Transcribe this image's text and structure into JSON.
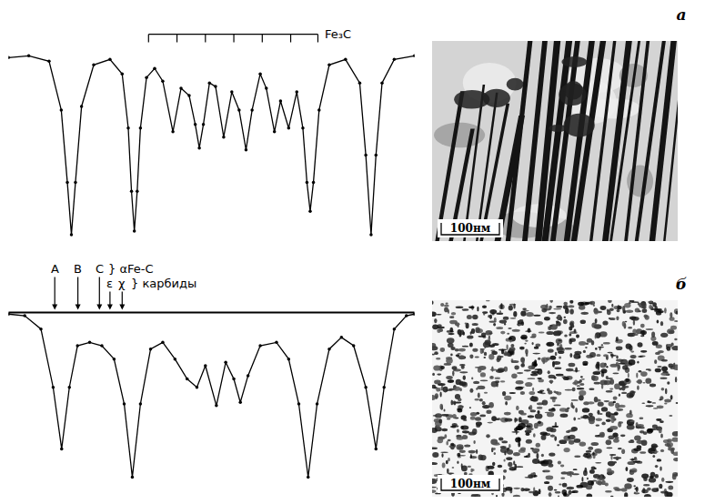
{
  "chart_data": [
    {
      "type": "line",
      "color": "#000000",
      "marker": "circle",
      "grid": false,
      "tick_labels": false,
      "x": [
        0,
        5,
        10,
        13,
        14.5,
        15.5,
        16.5,
        18,
        21,
        25,
        28,
        29.5,
        30.3,
        31,
        31.7,
        32.5,
        34,
        36,
        38,
        40.5,
        42.5,
        44.5,
        46,
        47,
        48,
        49.5,
        51,
        53,
        55,
        56.8,
        58.5,
        60,
        62,
        63.5,
        65.5,
        67,
        69,
        71,
        72.5,
        73.5,
        74.3,
        75.1,
        76.5,
        79,
        83,
        86.5,
        88,
        89.3,
        90.5,
        92,
        95,
        100
      ],
      "values": [
        0.99,
        1.0,
        0.97,
        0.7,
        0.3,
        0.01,
        0.3,
        0.72,
        0.95,
        0.98,
        0.9,
        0.6,
        0.25,
        0.03,
        0.25,
        0.6,
        0.88,
        0.93,
        0.86,
        0.58,
        0.82,
        0.78,
        0.62,
        0.49,
        0.62,
        0.85,
        0.83,
        0.55,
        0.8,
        0.7,
        0.48,
        0.7,
        0.9,
        0.82,
        0.58,
        0.75,
        0.6,
        0.8,
        0.6,
        0.3,
        0.14,
        0.3,
        0.7,
        0.95,
        0.98,
        0.85,
        0.45,
        0.01,
        0.45,
        0.85,
        0.98,
        1.0
      ],
      "xlim": [
        0,
        100
      ],
      "ylim": [
        -0.03,
        1.03
      ],
      "xticks": [],
      "yticks": [],
      "bracket": {
        "text": "Fe₃C",
        "x": [
          34.5,
          41.5,
          48.5,
          55.5,
          62.5,
          69.5,
          76.2
        ]
      }
    },
    {
      "type": "line",
      "color": "#000000",
      "marker": "circle",
      "grid": false,
      "tick_labels": false,
      "x": [
        0,
        4,
        8,
        11,
        13.1,
        15,
        17,
        20,
        23,
        26,
        28.5,
        30.5,
        32.5,
        35,
        38,
        41,
        44,
        46.4,
        48.5,
        51.2,
        53.5,
        55.5,
        57.1,
        59,
        62,
        66,
        69,
        71.5,
        73.8,
        76,
        79,
        82,
        85,
        88,
        90.5,
        92.5,
        95,
        98,
        100
      ],
      "values": [
        0.99,
        0.98,
        0.9,
        0.55,
        0.18,
        0.55,
        0.8,
        0.82,
        0.8,
        0.72,
        0.45,
        0.01,
        0.45,
        0.78,
        0.82,
        0.72,
        0.6,
        0.55,
        0.68,
        0.44,
        0.7,
        0.6,
        0.46,
        0.62,
        0.8,
        0.82,
        0.72,
        0.45,
        0.01,
        0.45,
        0.78,
        0.85,
        0.8,
        0.55,
        0.18,
        0.55,
        0.9,
        0.98,
        0.99
      ],
      "xlim": [
        0,
        100
      ],
      "ylim": [
        -0.03,
        1.03
      ],
      "xticks": [],
      "yticks": [],
      "baseline": 1.0,
      "groups": [
        {
          "name": "} αFe-C",
          "labels": [
            {
              "text": "A",
              "x": 11.4
            },
            {
              "text": "B",
              "x": 17.1
            },
            {
              "text": "C",
              "x": 22.4
            }
          ]
        },
        {
          "name": "} карбиды",
          "labels": [
            {
              "text": "ε",
              "x": 25
            },
            {
              "text": "χ",
              "x": 28
            }
          ]
        }
      ]
    }
  ],
  "micrographs": [
    {
      "label": "а",
      "scale_bar": "100нм"
    },
    {
      "label": "б",
      "scale_bar": "100нм"
    }
  ]
}
